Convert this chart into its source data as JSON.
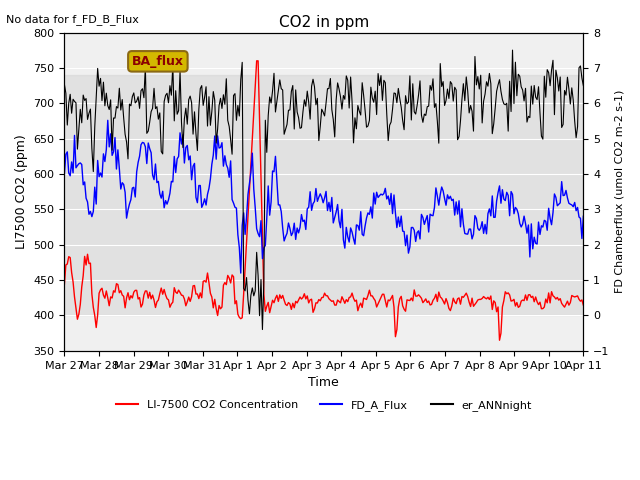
{
  "title": "CO2 in ppm",
  "top_left_text": "No data for f_FD_B_Flux",
  "xlabel": "Time",
  "ylabel_left": "LI7500 CO2 (ppm)",
  "ylabel_right": "FD Chamberflux (umol CO2 m-2 s-1)",
  "ylim_left": [
    350,
    800
  ],
  "ylim_right": [
    -1.0,
    8.0
  ],
  "yticks_left": [
    350,
    400,
    450,
    500,
    550,
    600,
    650,
    700,
    750,
    800
  ],
  "yticks_right": [
    -1.0,
    0.0,
    1.0,
    2.0,
    3.0,
    4.0,
    5.0,
    6.0,
    7.0,
    8.0
  ],
  "xtick_labels": [
    "Mar 27",
    "Mar 28",
    "Mar 29",
    "Mar 30",
    "Mar 31",
    "Apr 1",
    "Apr 2",
    "Apr 3",
    "Apr 4",
    "Apr 5",
    "Apr 6",
    "Apr 7",
    "Apr 8",
    "Apr 9",
    "Apr 10",
    "Apr 11"
  ],
  "shaded_band": [
    400,
    740
  ],
  "legend_items": [
    {
      "label": "LI-7500 CO2 Concentration",
      "color": "red",
      "lw": 1.5
    },
    {
      "label": "FD_A_Flux",
      "color": "blue",
      "lw": 1.5
    },
    {
      "label": "er_ANNnight",
      "color": "black",
      "lw": 1.5
    }
  ],
  "ba_flux_box": {
    "text": "BA_flux",
    "bg": "#d4b800",
    "border": "#8B6914",
    "text_color": "darkred"
  },
  "background_color": "#ffffff",
  "plot_bg": "#f0f0f0",
  "n_points": 360
}
